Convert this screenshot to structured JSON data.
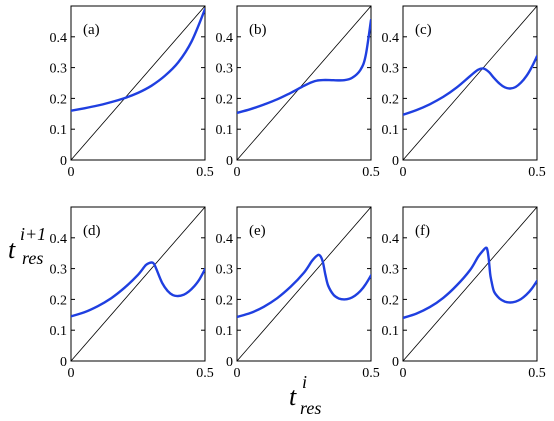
{
  "figure": {
    "ylabel": {
      "base": "t",
      "sup": "i+1",
      "sub": "res"
    },
    "xlabel": {
      "base": "t",
      "sup": "i",
      "sub": "res"
    }
  },
  "chart_data": [
    {
      "type": "line",
      "panel_label": "(a)",
      "xlim": [
        0,
        0.5
      ],
      "ylim": [
        0,
        0.5
      ],
      "xticks": [
        "0",
        "0.5"
      ],
      "yticks": [
        "0",
        "0.1",
        "0.2",
        "0.3",
        "0.4"
      ],
      "series": [
        {
          "role": "identity-line",
          "color": "#000000",
          "x": [
            0,
            0.5
          ],
          "y": [
            0,
            0.5
          ]
        },
        {
          "role": "map-curve",
          "color": "#1f3fe0",
          "x": [
            0,
            0.05,
            0.1,
            0.15,
            0.2,
            0.25,
            0.3,
            0.35,
            0.4,
            0.45,
            0.5
          ],
          "y": [
            0.16,
            0.168,
            0.177,
            0.188,
            0.201,
            0.218,
            0.241,
            0.273,
            0.317,
            0.385,
            0.49
          ]
        }
      ]
    },
    {
      "type": "line",
      "panel_label": "(b)",
      "xlim": [
        0,
        0.5
      ],
      "ylim": [
        0,
        0.5
      ],
      "xticks": [
        "0",
        "0.5"
      ],
      "yticks": [
        "0",
        "0.1",
        "0.2",
        "0.3",
        "0.4"
      ],
      "series": [
        {
          "role": "identity-line",
          "color": "#000000",
          "x": [
            0,
            0.5
          ],
          "y": [
            0,
            0.5
          ]
        },
        {
          "role": "map-curve",
          "color": "#1f3fe0",
          "x": [
            0,
            0.05,
            0.1,
            0.15,
            0.2,
            0.25,
            0.28,
            0.3,
            0.33,
            0.36,
            0.4,
            0.43,
            0.46,
            0.48,
            0.5
          ],
          "y": [
            0.153,
            0.165,
            0.18,
            0.197,
            0.218,
            0.241,
            0.253,
            0.258,
            0.26,
            0.259,
            0.259,
            0.267,
            0.292,
            0.338,
            0.455
          ]
        }
      ]
    },
    {
      "type": "line",
      "panel_label": "(c)",
      "xlim": [
        0,
        0.5
      ],
      "ylim": [
        0,
        0.5
      ],
      "xticks": [
        "0",
        "0.5"
      ],
      "yticks": [
        "0",
        "0.1",
        "0.2",
        "0.3",
        "0.4"
      ],
      "series": [
        {
          "role": "identity-line",
          "color": "#000000",
          "x": [
            0,
            0.5
          ],
          "y": [
            0,
            0.5
          ]
        },
        {
          "role": "map-curve",
          "color": "#1f3fe0",
          "x": [
            0,
            0.05,
            0.1,
            0.15,
            0.2,
            0.25,
            0.28,
            0.3,
            0.32,
            0.34,
            0.36,
            0.38,
            0.4,
            0.42,
            0.44,
            0.46,
            0.48,
            0.5
          ],
          "y": [
            0.147,
            0.162,
            0.181,
            0.205,
            0.235,
            0.272,
            0.293,
            0.297,
            0.286,
            0.266,
            0.248,
            0.236,
            0.232,
            0.237,
            0.251,
            0.272,
            0.301,
            0.337
          ]
        }
      ]
    },
    {
      "type": "line",
      "panel_label": "(d)",
      "xlim": [
        0,
        0.5
      ],
      "ylim": [
        0,
        0.5
      ],
      "xticks": [
        "0",
        "0.5"
      ],
      "yticks": [
        "0",
        "0.1",
        "0.2",
        "0.3",
        "0.4"
      ],
      "series": [
        {
          "role": "identity-line",
          "color": "#000000",
          "x": [
            0,
            0.5
          ],
          "y": [
            0,
            0.5
          ]
        },
        {
          "role": "map-curve",
          "color": "#1f3fe0",
          "x": [
            0,
            0.05,
            0.1,
            0.15,
            0.2,
            0.25,
            0.28,
            0.3,
            0.31,
            0.32,
            0.34,
            0.36,
            0.38,
            0.4,
            0.42,
            0.44,
            0.46,
            0.48,
            0.5
          ],
          "y": [
            0.145,
            0.158,
            0.178,
            0.204,
            0.238,
            0.28,
            0.312,
            0.32,
            0.315,
            0.295,
            0.254,
            0.228,
            0.214,
            0.211,
            0.215,
            0.226,
            0.243,
            0.266,
            0.298
          ]
        }
      ]
    },
    {
      "type": "line",
      "panel_label": "(e)",
      "xlim": [
        0,
        0.5
      ],
      "ylim": [
        0,
        0.5
      ],
      "xticks": [
        "0",
        "0.5"
      ],
      "yticks": [
        "0",
        "0.1",
        "0.2",
        "0.3",
        "0.4"
      ],
      "series": [
        {
          "role": "identity-line",
          "color": "#000000",
          "x": [
            0,
            0.5
          ],
          "y": [
            0,
            0.5
          ]
        },
        {
          "role": "map-curve",
          "color": "#1f3fe0",
          "x": [
            0,
            0.05,
            0.1,
            0.15,
            0.2,
            0.25,
            0.28,
            0.3,
            0.31,
            0.32,
            0.33,
            0.34,
            0.36,
            0.38,
            0.4,
            0.42,
            0.44,
            0.46,
            0.48,
            0.5
          ],
          "y": [
            0.143,
            0.156,
            0.176,
            0.204,
            0.241,
            0.287,
            0.325,
            0.343,
            0.342,
            0.322,
            0.28,
            0.245,
            0.215,
            0.203,
            0.2,
            0.203,
            0.212,
            0.227,
            0.249,
            0.278
          ]
        }
      ]
    },
    {
      "type": "line",
      "panel_label": "(f)",
      "xlim": [
        0,
        0.5
      ],
      "ylim": [
        0,
        0.5
      ],
      "xticks": [
        "0",
        "0.5"
      ],
      "yticks": [
        "0",
        "0.1",
        "0.2",
        "0.3",
        "0.4"
      ],
      "series": [
        {
          "role": "identity-line",
          "color": "#000000",
          "x": [
            0,
            0.5
          ],
          "y": [
            0,
            0.5
          ]
        },
        {
          "role": "map-curve",
          "color": "#1f3fe0",
          "x": [
            0,
            0.05,
            0.1,
            0.15,
            0.2,
            0.25,
            0.28,
            0.3,
            0.31,
            0.315,
            0.32,
            0.325,
            0.33,
            0.34,
            0.36,
            0.38,
            0.4,
            0.42,
            0.44,
            0.46,
            0.48,
            0.5
          ],
          "y": [
            0.14,
            0.154,
            0.175,
            0.205,
            0.245,
            0.295,
            0.338,
            0.36,
            0.368,
            0.36,
            0.33,
            0.285,
            0.26,
            0.225,
            0.203,
            0.193,
            0.19,
            0.193,
            0.201,
            0.215,
            0.234,
            0.26
          ]
        }
      ]
    }
  ]
}
